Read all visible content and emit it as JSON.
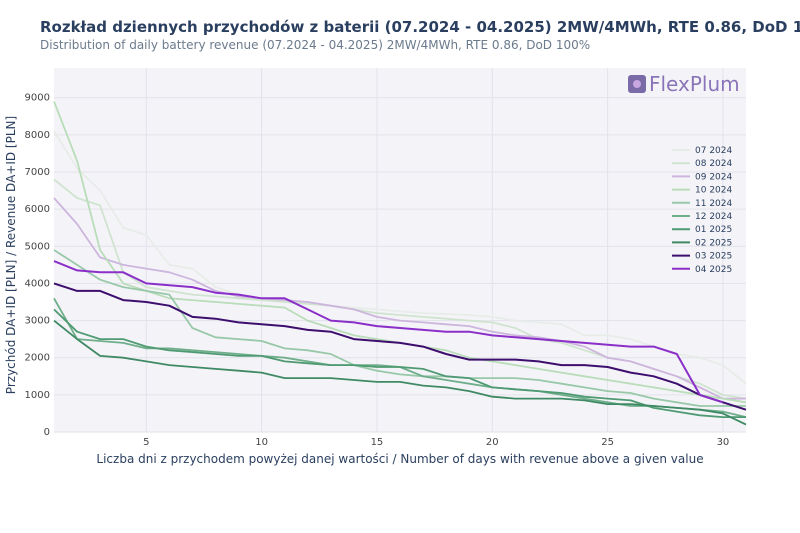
{
  "title": "Rozkład dziennych przychodów z baterii (07.2024 - 04.2025) 2MW/4MWh, RTE 0.86, DoD 100%",
  "subtitle": "Distribution of daily battery revenue (07.2024 - 04.2025) 2MW/4MWh, RTE 0.86, DoD 100%",
  "logo": {
    "text": "FlexPlum",
    "icon": "plum-icon"
  },
  "chart_data": {
    "type": "line",
    "title": "Rozkład dziennych przychodów z baterii (07.2024 - 04.2025) 2MW/4MWh, RTE 0.86, DoD 100%",
    "xlabel": "Liczba dni z przychodem powyżej danej wartości / Number of days with revenue above a given value",
    "ylabel": "Przychód DA+ID [PLN] / Revenue DA+ID [PLN]",
    "xlim": [
      1,
      31
    ],
    "ylim": [
      0,
      9800
    ],
    "xticks": [
      5,
      10,
      15,
      20,
      25,
      30
    ],
    "yticks": [
      0,
      1000,
      2000,
      3000,
      4000,
      5000,
      6000,
      7000,
      8000,
      9000
    ],
    "legend_position": "right",
    "grid": true,
    "series": [
      {
        "name": "07 2024",
        "color": "#e8ece8",
        "values": [
          8100,
          7100,
          6500,
          5500,
          5300,
          4500,
          4400,
          3900,
          3700,
          3600,
          3500,
          3450,
          3400,
          3350,
          3300,
          3250,
          3200,
          3180,
          3150,
          3100,
          3000,
          2950,
          2900,
          2600,
          2600,
          2500,
          2300,
          2100,
          2000,
          1800,
          1300
        ]
      },
      {
        "name": "08 2024",
        "color": "#cfe3cf",
        "values": [
          6800,
          6300,
          6100,
          4300,
          3900,
          3800,
          3700,
          3650,
          3600,
          3550,
          3500,
          3450,
          3400,
          3300,
          3200,
          3150,
          3100,
          3050,
          3000,
          2950,
          2800,
          2500,
          2400,
          2200,
          2000,
          1900,
          1700,
          1500,
          1300,
          1000,
          900
        ]
      },
      {
        "name": "09 2024",
        "color": "#cdb5dd",
        "values": [
          6300,
          5600,
          4700,
          4500,
          4400,
          4300,
          4100,
          3800,
          3650,
          3600,
          3550,
          3500,
          3400,
          3300,
          3100,
          3000,
          2950,
          2900,
          2850,
          2700,
          2600,
          2550,
          2450,
          2300,
          2000,
          1900,
          1700,
          1500,
          1200,
          900,
          900
        ]
      },
      {
        "name": "10 2024",
        "color": "#b9dcb9",
        "values": [
          8900,
          7300,
          4900,
          4000,
          3800,
          3600,
          3550,
          3500,
          3450,
          3400,
          3350,
          3000,
          2800,
          2600,
          2500,
          2400,
          2300,
          2200,
          2000,
          1900,
          1800,
          1700,
          1600,
          1500,
          1400,
          1300,
          1200,
          1100,
          1000,
          900,
          800
        ]
      },
      {
        "name": "11 2024",
        "color": "#98c8a8",
        "values": [
          4900,
          4500,
          4100,
          3900,
          3800,
          3700,
          2800,
          2550,
          2500,
          2450,
          2250,
          2200,
          2100,
          1800,
          1650,
          1550,
          1500,
          1500,
          1450,
          1450,
          1450,
          1400,
          1300,
          1200,
          1100,
          1050,
          900,
          800,
          700,
          700,
          700
        ]
      },
      {
        "name": "12 2024",
        "color": "#6fae8a",
        "values": [
          3600,
          2500,
          2450,
          2400,
          2250,
          2250,
          2200,
          2150,
          2100,
          2050,
          2000,
          1900,
          1800,
          1800,
          1800,
          1750,
          1500,
          1400,
          1300,
          1200,
          1150,
          1100,
          1000,
          900,
          800,
          700,
          700,
          650,
          600,
          550,
          400
        ]
      },
      {
        "name": "01 2025",
        "color": "#4f9a72",
        "values": [
          3300,
          2700,
          2500,
          2500,
          2300,
          2200,
          2150,
          2100,
          2050,
          2050,
          1900,
          1850,
          1800,
          1800,
          1750,
          1750,
          1700,
          1500,
          1450,
          1200,
          1150,
          1100,
          1050,
          950,
          900,
          850,
          650,
          550,
          450,
          400,
          400
        ]
      },
      {
        "name": "02 2025",
        "color": "#3f8a64",
        "values": [
          3000,
          2500,
          2050,
          2000,
          1900,
          1800,
          1750,
          1700,
          1650,
          1600,
          1450,
          1450,
          1450,
          1400,
          1350,
          1350,
          1250,
          1200,
          1100,
          950,
          900,
          900,
          900,
          850,
          750,
          750,
          700,
          650,
          600,
          500,
          200
        ]
      },
      {
        "name": "03 2025",
        "color": "#3d0e6e",
        "values": [
          4000,
          3800,
          3800,
          3550,
          3500,
          3400,
          3100,
          3050,
          2950,
          2900,
          2850,
          2750,
          2700,
          2500,
          2450,
          2400,
          2300,
          2100,
          1950,
          1950,
          1950,
          1900,
          1800,
          1800,
          1750,
          1600,
          1500,
          1300,
          1000,
          800,
          600
        ]
      },
      {
        "name": "04 2025",
        "color": "#8b2fc9",
        "values": [
          4600,
          4350,
          4300,
          4300,
          4000,
          3950,
          3900,
          3750,
          3700,
          3600,
          3600,
          3300,
          3000,
          2950,
          2850,
          2800,
          2750,
          2700,
          2700,
          2600,
          2550,
          2500,
          2450,
          2400,
          2350,
          2300,
          2300,
          2100,
          1000,
          800,
          null
        ]
      }
    ]
  }
}
